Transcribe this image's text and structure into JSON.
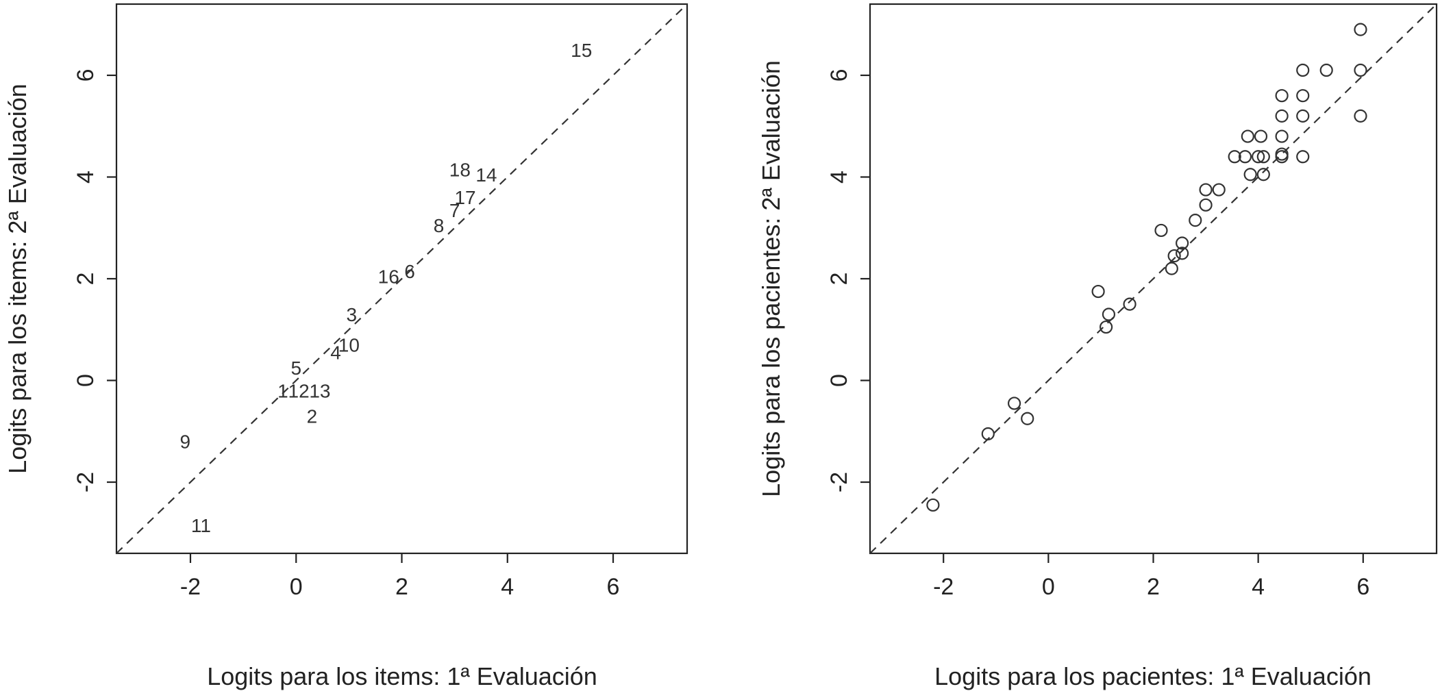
{
  "chart_data": [
    {
      "type": "scatter",
      "xlabel": "Logits para los items: 1ª Evaluación",
      "ylabel": "Logits para los items: 2ª Evaluación",
      "xlim": [
        -3.4,
        7.4
      ],
      "ylim": [
        -3.4,
        7.4
      ],
      "xticks": [
        -2,
        0,
        2,
        4,
        6
      ],
      "yticks": [
        -2,
        0,
        2,
        4,
        6
      ],
      "reference_line": "y = x (dashed)",
      "marker": "text",
      "points": [
        {
          "label": "15",
          "x": 5.4,
          "y": 6.5
        },
        {
          "label": "18",
          "x": 3.1,
          "y": 4.15
        },
        {
          "label": "14",
          "x": 3.6,
          "y": 4.05
        },
        {
          "label": "17",
          "x": 3.2,
          "y": 3.6
        },
        {
          "label": "7",
          "x": 3.0,
          "y": 3.35
        },
        {
          "label": "8",
          "x": 2.7,
          "y": 3.05
        },
        {
          "label": "16",
          "x": 1.75,
          "y": 2.05
        },
        {
          "label": "6",
          "x": 2.15,
          "y": 2.15
        },
        {
          "label": "3",
          "x": 1.05,
          "y": 1.3
        },
        {
          "label": "4",
          "x": 0.75,
          "y": 0.55
        },
        {
          "label": "10",
          "x": 1.0,
          "y": 0.7
        },
        {
          "label": "5",
          "x": 0.0,
          "y": 0.25
        },
        {
          "label": "1",
          "x": -0.25,
          "y": -0.2
        },
        {
          "label": "12",
          "x": 0.05,
          "y": -0.2
        },
        {
          "label": "13",
          "x": 0.45,
          "y": -0.2
        },
        {
          "label": "2",
          "x": 0.3,
          "y": -0.7
        },
        {
          "label": "9",
          "x": -2.1,
          "y": -1.2
        },
        {
          "label": "11",
          "x": -1.8,
          "y": -2.85
        }
      ]
    },
    {
      "type": "scatter",
      "xlabel": "Logits para los pacientes: 1ª Evaluación",
      "ylabel": "Logits para los pacientes: 2ª Evaluación",
      "xlim": [
        -3.4,
        7.4
      ],
      "ylim": [
        -3.4,
        7.4
      ],
      "xticks": [
        -2,
        0,
        2,
        4,
        6
      ],
      "yticks": [
        -2,
        0,
        2,
        4,
        6
      ],
      "reference_line": "y = x (dashed)",
      "marker": "circle",
      "x": [
        -2.2,
        -1.15,
        -0.65,
        -0.4,
        0.95,
        1.1,
        1.15,
        1.55,
        2.15,
        2.35,
        2.4,
        2.55,
        2.55,
        2.8,
        3.0,
        3.0,
        3.25,
        3.55,
        3.75,
        3.8,
        3.85,
        4.0,
        4.05,
        4.1,
        4.1,
        4.45,
        4.45,
        4.45,
        4.45,
        4.45,
        4.85,
        4.85,
        4.85,
        4.85,
        5.3,
        5.95,
        5.95,
        5.95
      ],
      "y": [
        -2.45,
        -1.05,
        -0.45,
        -0.75,
        1.75,
        1.05,
        1.3,
        1.5,
        2.95,
        2.2,
        2.45,
        2.5,
        2.7,
        3.15,
        3.45,
        3.75,
        3.75,
        4.4,
        4.4,
        4.8,
        4.05,
        4.4,
        4.8,
        4.4,
        4.05,
        4.4,
        4.8,
        5.2,
        5.6,
        4.45,
        5.2,
        5.6,
        6.1,
        4.4,
        6.1,
        5.2,
        6.1,
        6.9
      ]
    }
  ]
}
